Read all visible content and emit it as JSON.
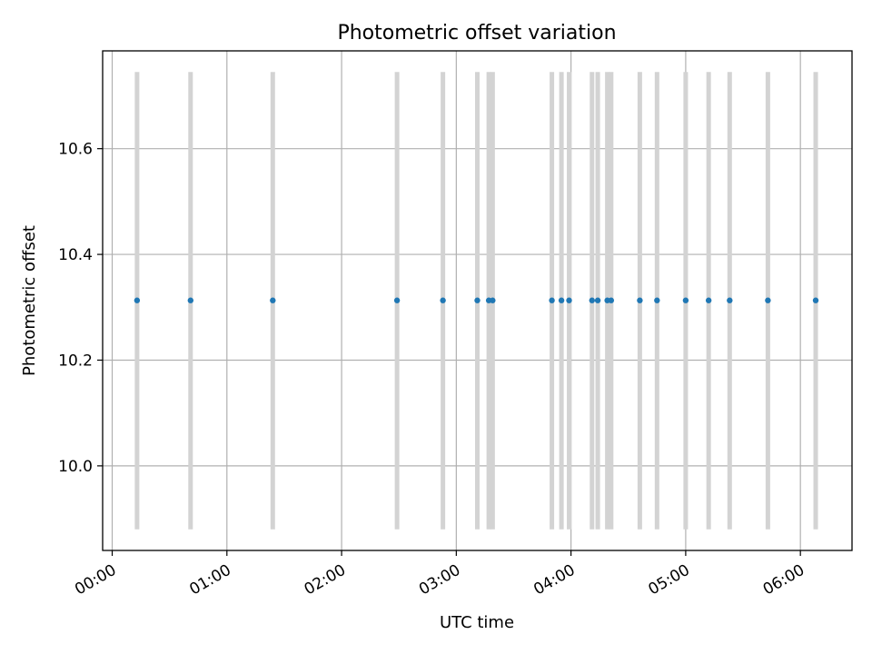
{
  "chart_data": {
    "type": "scatter",
    "title": "Photometric offset variation",
    "xlabel": "UTC time",
    "ylabel": "Photometric offset",
    "xlim": [
      "23:55",
      "06:27"
    ],
    "ylim": [
      9.84,
      10.785
    ],
    "x_ticks": [
      "00:00",
      "01:00",
      "02:00",
      "03:00",
      "04:00",
      "05:00",
      "06:00"
    ],
    "y_ticks": [
      "10.0",
      "10.2",
      "10.4",
      "10.6"
    ],
    "y_tick_values": [
      10.0,
      10.2,
      10.4,
      10.6
    ],
    "grid": true,
    "series": [
      {
        "x": [
          "00:13",
          "00:41",
          "01:24",
          "02:29",
          "02:53",
          "03:11",
          "03:17",
          "03:19",
          "03:50",
          "03:55",
          "03:59",
          "04:11",
          "04:14",
          "04:19",
          "04:21",
          "04:36",
          "04:45",
          "05:00",
          "05:12",
          "05:23",
          "05:43",
          "06:08"
        ],
        "y": [
          10.313,
          10.313,
          10.313,
          10.313,
          10.313,
          10.313,
          10.313,
          10.313,
          10.313,
          10.313,
          10.313,
          10.313,
          10.313,
          10.313,
          10.313,
          10.313,
          10.313,
          10.313,
          10.313,
          10.313,
          10.313,
          10.313
        ],
        "color": "#1f77b4"
      }
    ],
    "vertical_bands": {
      "x": [
        "00:13",
        "00:41",
        "01:24",
        "02:29",
        "02:53",
        "03:11",
        "03:17",
        "03:19",
        "03:50",
        "03:55",
        "03:59",
        "04:11",
        "04:14",
        "04:19",
        "04:21",
        "04:36",
        "04:45",
        "05:00",
        "05:12",
        "05:23",
        "05:43",
        "06:08"
      ],
      "ymin": 9.88,
      "ymax": 10.745,
      "color": "#d3d3d3"
    },
    "colors": {
      "grid": "#b0b0b0",
      "axis": "#000000",
      "point": "#1f77b4",
      "band": "#d3d3d3"
    }
  }
}
